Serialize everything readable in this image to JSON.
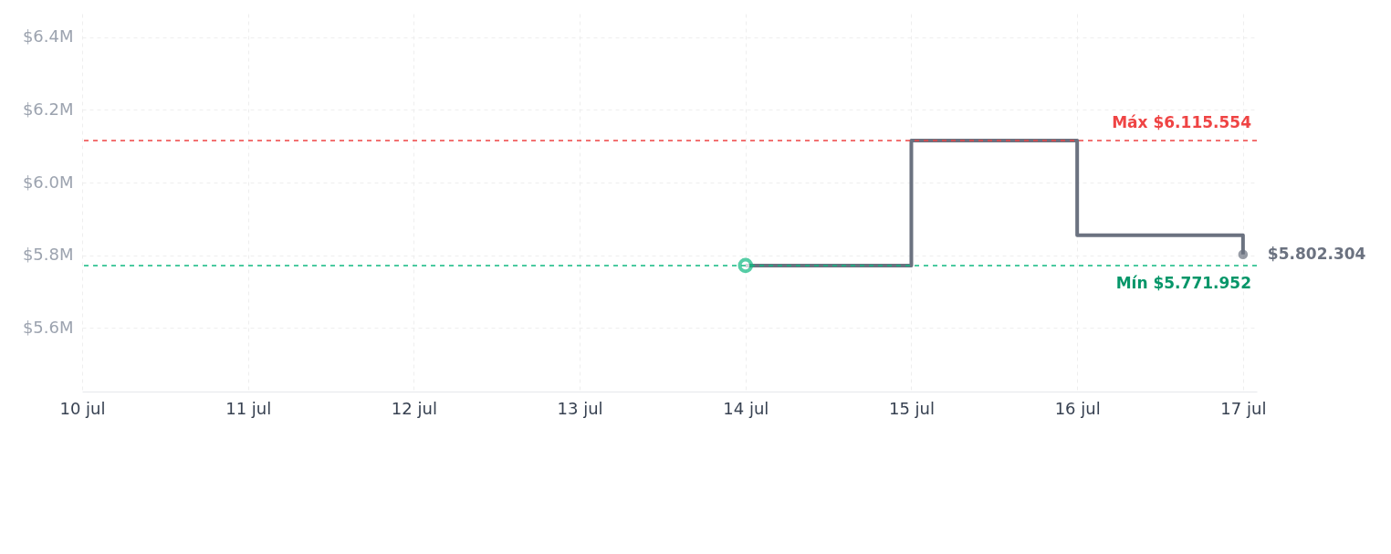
{
  "chart_data": {
    "type": "step",
    "x": [
      "--07-14",
      "--07-15",
      "--07-16",
      "--07-17"
    ],
    "series": [
      {
        "color": "#6b7280",
        "values": [
          5771952,
          6115554,
          5855000,
          5802304
        ]
      }
    ],
    "xlim": [
      "--07-10",
      "--07-17T02:00"
    ],
    "xticks": [
      {
        "value": "--07-10",
        "label": "10 jul"
      },
      {
        "value": "--07-11",
        "label": "11 jul"
      },
      {
        "value": "--07-12",
        "label": "12 jul"
      },
      {
        "value": "--07-13",
        "label": "13 jul"
      },
      {
        "value": "--07-14",
        "label": "14 jul"
      },
      {
        "value": "--07-15",
        "label": "15 jul"
      },
      {
        "value": "--07-16",
        "label": "16 jul"
      },
      {
        "value": "--07-17",
        "label": "17 jul"
      }
    ],
    "ylim": [
      5425000,
      6465000
    ],
    "yticks": [
      {
        "value": 5600000,
        "label": "$5.6M"
      },
      {
        "value": 5800000,
        "label": "$5.8M"
      },
      {
        "value": 6000000,
        "label": "$6.0M"
      },
      {
        "value": 6200000,
        "label": "$6.2M"
      },
      {
        "value": 6400000,
        "label": "$6.4M"
      }
    ],
    "ref_lines": [
      {
        "axis": "y",
        "value": 6115554,
        "label": "Máx $6.115.554",
        "color": "#ef4444",
        "line_style": "dashed"
      },
      {
        "axis": "y",
        "value": 5771952,
        "label": "Mín $5.771.952",
        "color": "#10b981",
        "line_style": "dashed"
      }
    ],
    "annotations": [
      {
        "text": "$5.802.304",
        "x": "--07-17",
        "y": 5802304
      }
    ],
    "grid": true,
    "marker": "circle",
    "line_style": "solid"
  }
}
